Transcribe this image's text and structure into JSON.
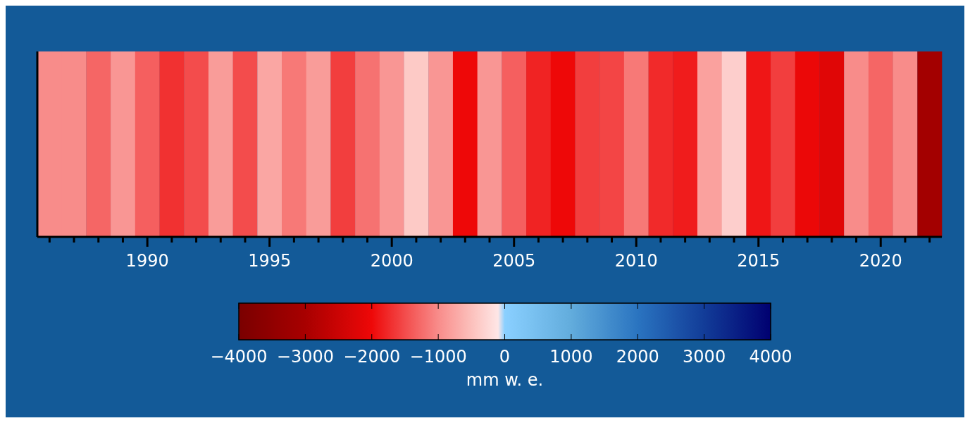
{
  "chart_data": {
    "type": "heatmap",
    "categories": [
      null,
      null,
      null,
      null,
      "1990",
      null,
      null,
      null,
      null,
      "1995",
      null,
      null,
      null,
      null,
      "2000",
      null,
      null,
      null,
      null,
      "2005",
      null,
      null,
      null,
      null,
      "2010",
      null,
      null,
      null,
      null,
      "2015",
      null,
      null,
      null,
      null,
      "2020",
      null,
      null
    ],
    "y_categories": [
      null
    ],
    "cells": [
      [
        -1000,
        -1000,
        -1300,
        -900,
        -1350,
        -1700,
        -1500,
        -850,
        -1500,
        -750,
        -1150,
        -850,
        -1600,
        -1200,
        -900,
        -400,
        -900,
        -2000,
        -900,
        -1350,
        -1800,
        -2000,
        -1600,
        -1550,
        -1150,
        -1750,
        -1850,
        -800,
        -350,
        -1900,
        -1600,
        -2050,
        -2200,
        -1000,
        -1300,
        -1000,
        -3100
      ]
    ],
    "clim": [
      -4000,
      4000
    ],
    "cticks": [
      -4000,
      -3000,
      -2000,
      -1000,
      0,
      1000,
      2000,
      3000,
      4000
    ],
    "clabel": "mm w. e."
  }
}
